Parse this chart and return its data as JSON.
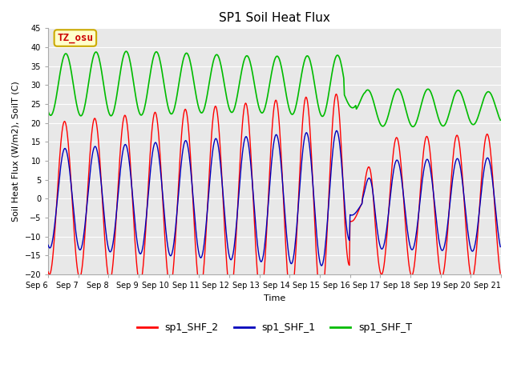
{
  "title": "SP1 Soil Heat Flux",
  "xlabel": "Time",
  "ylabel": "Soil Heat Flux (W/m2), SoilT (C)",
  "ylim": [
    -20,
    45
  ],
  "yticks": [
    -20,
    -15,
    -10,
    -5,
    0,
    5,
    10,
    15,
    20,
    25,
    30,
    35,
    40,
    45
  ],
  "colors": {
    "shf2": "#ff0000",
    "shf1": "#0000bb",
    "shft": "#00bb00",
    "background": "#e8e8e8",
    "grid": "#ffffff"
  },
  "legend_labels": [
    "sp1_SHF_2",
    "sp1_SHF_1",
    "sp1_SHF_T"
  ],
  "annotation_text": "TZ_osu",
  "annotation_color": "#cc0000",
  "annotation_bg": "#ffffcc",
  "annotation_border": "#ccaa00",
  "num_days": 15,
  "pts_per_day": 48,
  "figsize": [
    6.4,
    4.8
  ],
  "dpi": 100,
  "title_fontsize": 11,
  "axis_fontsize": 8,
  "tick_fontsize": 7,
  "legend_fontsize": 9
}
